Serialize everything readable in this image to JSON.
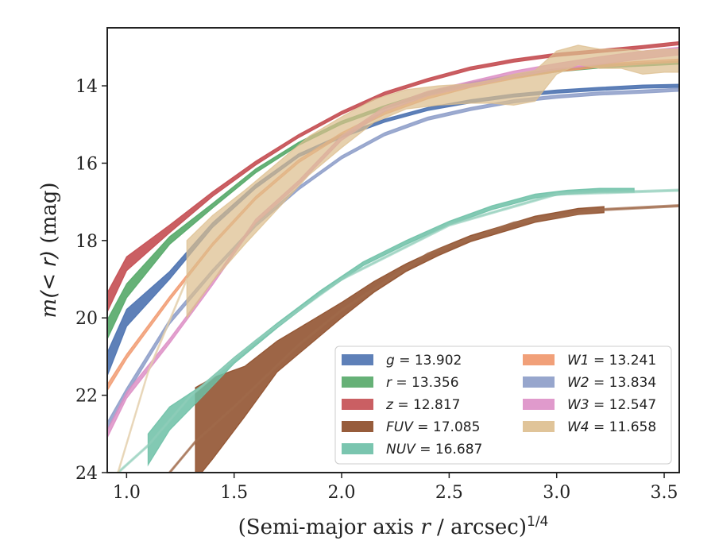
{
  "chart_data": {
    "type": "line",
    "xlabel": "(Semi-major axis r / arcsec)",
    "xlabel_exponent": "1/4",
    "ylabel_italic": "m",
    "ylabel_math": "(< r)",
    "ylabel_unit": " (mag)",
    "xlim": [
      0.91,
      3.57
    ],
    "ylim": [
      24.0,
      12.5
    ],
    "y_inverted": true,
    "xticks": [
      1.0,
      1.5,
      2.0,
      2.5,
      3.0,
      3.5
    ],
    "xtick_labels": [
      "1.0",
      "1.5",
      "2.0",
      "2.5",
      "3.0",
      "3.5"
    ],
    "yticks": [
      14,
      16,
      18,
      20,
      22,
      24
    ],
    "ytick_labels": [
      "14",
      "16",
      "18",
      "20",
      "22",
      "24"
    ],
    "grid": false,
    "legend_placement": "lower-right",
    "series": [
      {
        "name": "g",
        "legend_value": "13.902",
        "color": "#4c72b0",
        "opacity": 0.9,
        "x": [
          0.91,
          1.0,
          1.2,
          1.4,
          1.6,
          1.8,
          2.0,
          2.2,
          2.4,
          2.6,
          2.8,
          3.0,
          3.2,
          3.4,
          3.57
        ],
        "y": [
          21.2,
          20.0,
          18.9,
          17.6,
          16.6,
          15.8,
          15.3,
          14.9,
          14.6,
          14.4,
          14.25,
          14.15,
          14.08,
          14.02,
          14.0
        ],
        "hw": [
          0.3,
          0.22,
          0.1,
          0.06,
          0.05,
          0.04,
          0.04,
          0.04,
          0.04,
          0.04,
          0.04,
          0.04,
          0.04,
          0.04,
          0.04
        ]
      },
      {
        "name": "r",
        "legend_value": "13.356",
        "color": "#55a868",
        "opacity": 0.9,
        "x": [
          0.91,
          1.0,
          1.2,
          1.4,
          1.6,
          1.8,
          2.0,
          2.2,
          2.4,
          2.6,
          2.8,
          3.0,
          3.2,
          3.4,
          3.57
        ],
        "y": [
          20.3,
          19.3,
          18.0,
          17.1,
          16.2,
          15.5,
          14.95,
          14.55,
          14.2,
          13.95,
          13.75,
          13.6,
          13.5,
          13.45,
          13.4
        ],
        "hw": [
          0.25,
          0.18,
          0.1,
          0.06,
          0.05,
          0.04,
          0.04,
          0.04,
          0.04,
          0.04,
          0.04,
          0.04,
          0.04,
          0.04,
          0.04
        ]
      },
      {
        "name": "z",
        "legend_value": "12.817",
        "color": "#c44e52",
        "opacity": 0.9,
        "x": [
          0.91,
          1.0,
          1.2,
          1.4,
          1.6,
          1.8,
          2.0,
          2.2,
          2.4,
          2.6,
          2.8,
          3.0,
          3.2,
          3.4,
          3.57
        ],
        "y": [
          19.6,
          18.6,
          17.7,
          16.8,
          16.0,
          15.3,
          14.7,
          14.2,
          13.85,
          13.55,
          13.35,
          13.2,
          13.1,
          13.0,
          12.9
        ],
        "hw": [
          0.25,
          0.18,
          0.1,
          0.06,
          0.05,
          0.04,
          0.04,
          0.04,
          0.04,
          0.04,
          0.04,
          0.04,
          0.04,
          0.04,
          0.04
        ]
      },
      {
        "name": "FUV",
        "legend_value": "17.085",
        "color": "#8c4a26",
        "opacity": 0.85,
        "x": [
          1.32,
          1.4,
          1.55,
          1.7,
          1.85,
          2.0,
          2.15,
          2.3,
          2.45,
          2.6,
          2.75,
          2.9,
          3.0,
          3.1,
          3.22
        ],
        "y": [
          23.0,
          22.6,
          21.9,
          21.0,
          20.4,
          19.8,
          19.2,
          18.7,
          18.3,
          17.95,
          17.7,
          17.45,
          17.35,
          17.25,
          17.2
        ],
        "hw": [
          1.2,
          1.05,
          0.65,
          0.4,
          0.3,
          0.2,
          0.14,
          0.1,
          0.09,
          0.08,
          0.08,
          0.08,
          0.08,
          0.08,
          0.08
        ]
      },
      {
        "name": "FUV-extension",
        "color": "#a0694a",
        "opacity": 0.7,
        "extension": true,
        "x": [
          1.2,
          1.32,
          1.5,
          1.8,
          2.0,
          2.4,
          2.8,
          3.22,
          3.57
        ],
        "y": [
          24.0,
          23.2,
          22.3,
          20.7,
          19.8,
          18.35,
          17.55,
          17.2,
          17.1
        ],
        "hw": [
          0.02,
          0.02,
          0.02,
          0.02,
          0.02,
          0.02,
          0.02,
          0.02,
          0.02
        ]
      },
      {
        "name": "NUV",
        "legend_value": "16.687",
        "color": "#6cbfa6",
        "opacity": 0.85,
        "x": [
          1.1,
          1.2,
          1.35,
          1.5,
          1.7,
          1.9,
          2.1,
          2.3,
          2.5,
          2.7,
          2.9,
          3.05,
          3.2,
          3.36
        ],
        "y": [
          23.4,
          22.6,
          21.9,
          21.1,
          20.2,
          19.35,
          18.6,
          18.05,
          17.55,
          17.15,
          16.85,
          16.75,
          16.7,
          16.7
        ],
        "hw": [
          0.4,
          0.3,
          0.15,
          0.08,
          0.06,
          0.05,
          0.05,
          0.05,
          0.05,
          0.05,
          0.05,
          0.05,
          0.05,
          0.05
        ]
      },
      {
        "name": "NUV-extension",
        "color": "#8fcdb9",
        "opacity": 0.6,
        "extension": true,
        "x": [
          0.96,
          1.1,
          1.3,
          1.6,
          2.0,
          2.5,
          3.0,
          3.57
        ],
        "y": [
          24.0,
          23.3,
          22.0,
          20.6,
          19.0,
          17.6,
          16.8,
          16.7
        ],
        "hw": [
          0.02,
          0.02,
          0.02,
          0.02,
          0.02,
          0.02,
          0.02,
          0.02
        ]
      },
      {
        "name": "W1",
        "legend_value": "13.241",
        "color": "#f0966a",
        "opacity": 0.8,
        "x": [
          0.91,
          1.0,
          1.2,
          1.4,
          1.6,
          1.8,
          2.0,
          2.2,
          2.4,
          2.6,
          2.8,
          3.0,
          3.2,
          3.4,
          3.57
        ],
        "y": [
          21.8,
          21.0,
          19.5,
          18.1,
          16.9,
          15.95,
          15.25,
          14.7,
          14.3,
          14.0,
          13.78,
          13.6,
          13.48,
          13.4,
          13.35
        ],
        "hw": [
          0.08,
          0.06,
          0.05,
          0.04,
          0.04,
          0.04,
          0.04,
          0.04,
          0.04,
          0.04,
          0.04,
          0.04,
          0.04,
          0.04,
          0.04
        ]
      },
      {
        "name": "W2",
        "legend_value": "13.834",
        "color": "#8c9cc8",
        "opacity": 0.85,
        "x": [
          0.91,
          1.0,
          1.2,
          1.4,
          1.6,
          1.8,
          2.0,
          2.2,
          2.4,
          2.6,
          2.8,
          3.0,
          3.2,
          3.4,
          3.57
        ],
        "y": [
          22.8,
          21.9,
          20.1,
          18.8,
          17.6,
          16.65,
          15.85,
          15.25,
          14.85,
          14.6,
          14.4,
          14.28,
          14.2,
          14.15,
          14.1
        ],
        "hw": [
          0.1,
          0.08,
          0.06,
          0.05,
          0.04,
          0.04,
          0.04,
          0.04,
          0.04,
          0.04,
          0.04,
          0.04,
          0.04,
          0.04,
          0.04
        ]
      },
      {
        "name": "W3",
        "legend_value": "12.547",
        "color": "#dd8fc6",
        "opacity": 0.85,
        "x": [
          0.91,
          1.0,
          1.2,
          1.4,
          1.6,
          1.8,
          2.0,
          2.2,
          2.4,
          2.6,
          2.8,
          3.0,
          3.2,
          3.4,
          3.57
        ],
        "y": [
          23.0,
          22.0,
          20.6,
          19.1,
          17.5,
          16.5,
          15.35,
          14.6,
          14.2,
          13.95,
          13.7,
          13.5,
          13.35,
          13.2,
          13.1
        ],
        "hw": [
          0.1,
          0.08,
          0.06,
          0.05,
          0.05,
          0.05,
          0.06,
          0.06,
          0.06,
          0.07,
          0.08,
          0.08,
          0.1,
          0.1,
          0.1
        ]
      },
      {
        "name": "W4",
        "legend_value": "11.658",
        "color": "#ddbe8e",
        "opacity": 0.72,
        "x": [
          1.28,
          1.4,
          1.55,
          1.7,
          1.85,
          2.0,
          2.15,
          2.3,
          2.45,
          2.6,
          2.7,
          2.8,
          2.9,
          3.0,
          3.1,
          3.2,
          3.3,
          3.4,
          3.5,
          3.57
        ],
        "y": [
          19.0,
          18.2,
          17.4,
          16.6,
          15.8,
          15.2,
          14.65,
          14.35,
          14.25,
          14.2,
          14.15,
          14.1,
          14.0,
          13.4,
          13.2,
          13.3,
          13.3,
          13.4,
          13.35,
          13.35
        ],
        "hw": [
          1.0,
          0.85,
          0.7,
          0.6,
          0.5,
          0.4,
          0.3,
          0.25,
          0.25,
          0.25,
          0.3,
          0.4,
          0.4,
          0.3,
          0.25,
          0.25,
          0.25,
          0.3,
          0.3,
          0.3
        ]
      },
      {
        "name": "W4-extension",
        "color": "#e3cdaa",
        "opacity": 0.75,
        "extension": true,
        "x": [
          0.96,
          1.1,
          1.28
        ],
        "y": [
          24.0,
          21.4,
          19.0
        ],
        "hw": [
          0.02,
          0.02,
          0.02
        ]
      }
    ],
    "legend": {
      "columns": 2,
      "entries": [
        {
          "label": "g",
          "value": "13.902",
          "color": "#4c72b0"
        },
        {
          "label": "r",
          "value": "13.356",
          "color": "#55a868"
        },
        {
          "label": "z",
          "value": "12.817",
          "color": "#c44e52"
        },
        {
          "label": "FUV",
          "value": "17.085",
          "color": "#8c4a26"
        },
        {
          "label": "NUV",
          "value": "16.687",
          "color": "#6cbfa6"
        },
        {
          "label": "W1",
          "value": "13.241",
          "color": "#f0966a"
        },
        {
          "label": "W2",
          "value": "13.834",
          "color": "#8c9cc8"
        },
        {
          "label": "W3",
          "value": "12.547",
          "color": "#dd8fc6"
        },
        {
          "label": "W4",
          "value": "11.658",
          "color": "#ddbe8e"
        }
      ]
    }
  }
}
